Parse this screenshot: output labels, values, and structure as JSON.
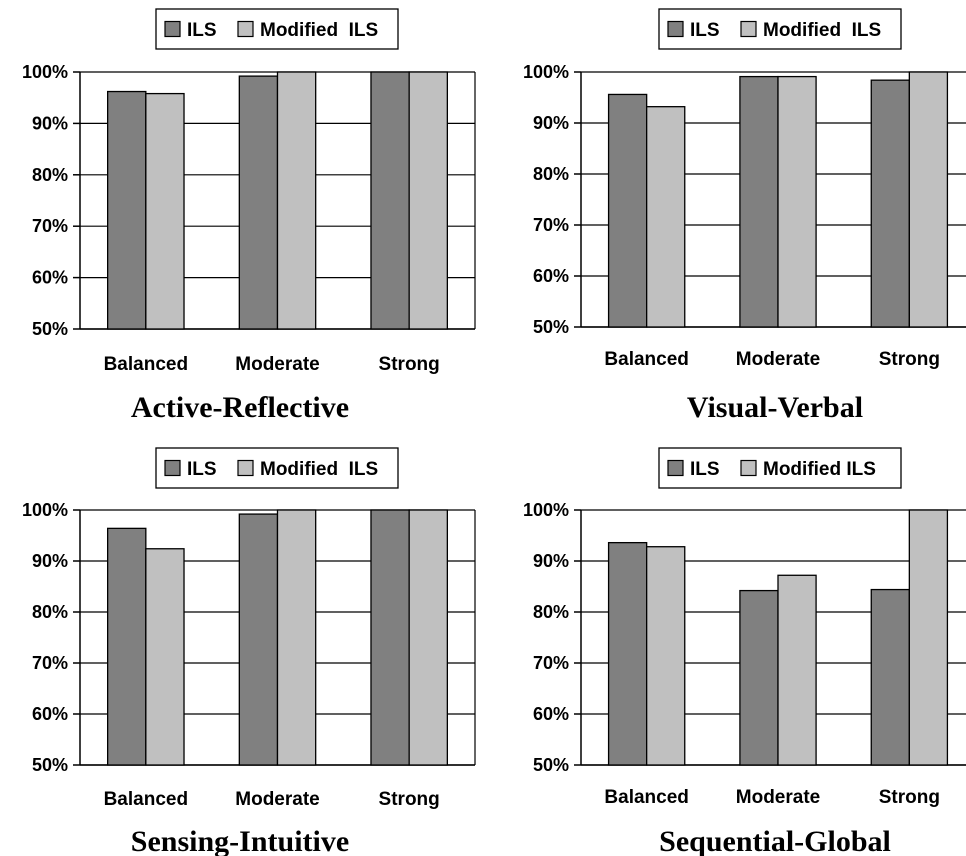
{
  "colors": {
    "ils": "#808080",
    "modified": "#c0c0c0",
    "stroke": "#000000",
    "grid": "#000000"
  },
  "chart_data": [
    {
      "type": "bar",
      "title": "Active-Reflective",
      "legend": [
        "ILS",
        "Modified  ILS"
      ],
      "legend_position": "top",
      "categories": [
        "Balanced",
        "Moderate",
        "Strong"
      ],
      "series": [
        {
          "name": "ILS",
          "values": [
            96.2,
            99.2,
            100
          ]
        },
        {
          "name": "Modified  ILS",
          "values": [
            95.8,
            100,
            100
          ]
        }
      ],
      "ylim": [
        50,
        100
      ],
      "yticks": [
        "50%",
        "60%",
        "70%",
        "80%",
        "90%",
        "100%"
      ],
      "grid": true
    },
    {
      "type": "bar",
      "title": "Visual-Verbal",
      "legend": [
        "ILS",
        "Modified  ILS"
      ],
      "legend_position": "top",
      "categories": [
        "Balanced",
        "Moderate",
        "Strong"
      ],
      "series": [
        {
          "name": "ILS",
          "values": [
            95.6,
            99.1,
            98.4
          ]
        },
        {
          "name": "Modified  ILS",
          "values": [
            93.2,
            99.1,
            100
          ]
        }
      ],
      "ylim": [
        50,
        100
      ],
      "yticks": [
        "50%",
        "60%",
        "70%",
        "80%",
        "90%",
        "100%"
      ],
      "grid": true
    },
    {
      "type": "bar",
      "title": "Sensing-Intuitive",
      "legend": [
        "ILS",
        "Modified  ILS"
      ],
      "legend_position": "top",
      "categories": [
        "Balanced",
        "Moderate",
        "Strong"
      ],
      "series": [
        {
          "name": "ILS",
          "values": [
            96.4,
            99.2,
            100
          ]
        },
        {
          "name": "Modified  ILS",
          "values": [
            92.4,
            100,
            100
          ]
        }
      ],
      "ylim": [
        50,
        100
      ],
      "yticks": [
        "50%",
        "60%",
        "70%",
        "80%",
        "90%",
        "100%"
      ],
      "grid": true
    },
    {
      "type": "bar",
      "title": "Sequential-Global",
      "legend": [
        "ILS",
        "Modified ILS"
      ],
      "legend_position": "top",
      "categories": [
        "Balanced",
        "Moderate",
        "Strong"
      ],
      "series": [
        {
          "name": "ILS",
          "values": [
            93.6,
            84.2,
            84.4
          ]
        },
        {
          "name": "Modified ILS",
          "values": [
            92.8,
            87.2,
            100
          ]
        }
      ],
      "ylim": [
        50,
        100
      ],
      "yticks": [
        "50%",
        "60%",
        "70%",
        "80%",
        "90%",
        "100%"
      ],
      "grid": true
    }
  ]
}
